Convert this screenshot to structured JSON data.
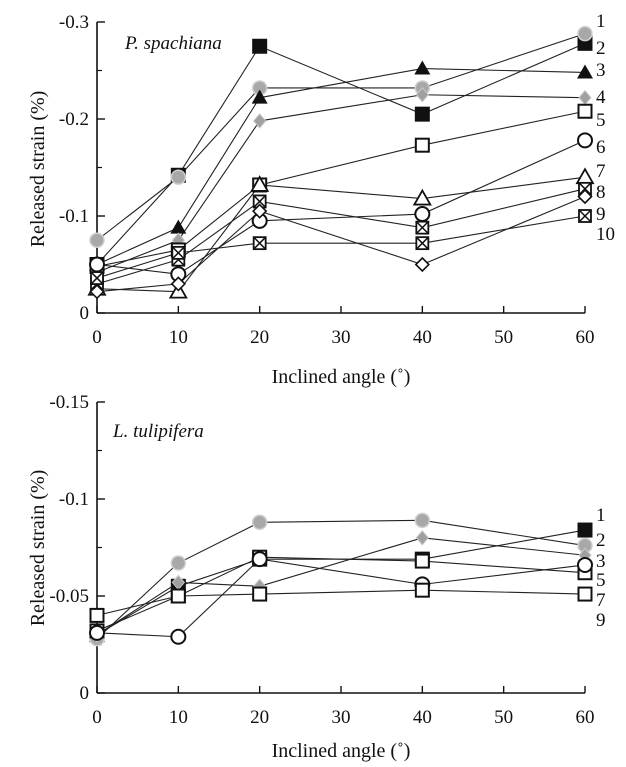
{
  "chart_data": [
    {
      "type": "line",
      "title": "P. spachiana",
      "xlabel": "Inclined angle (˚)",
      "ylabel": "Released strain (%)",
      "xlim": [
        0,
        60
      ],
      "ylim": [
        0,
        -0.3
      ],
      "x_ticks": [
        "0",
        "10",
        "20",
        "30",
        "40",
        "50",
        "60"
      ],
      "y_ticks": [
        "0",
        "-0.1",
        "-0.2",
        "-0.3"
      ],
      "x": [
        0,
        10,
        20,
        40,
        60
      ],
      "series": [
        {
          "label": "1",
          "marker": "square-filled",
          "values": [
            -0.05,
            -0.142,
            -0.275,
            -0.205,
            -0.278
          ]
        },
        {
          "label": "2",
          "marker": "circle-gray",
          "values": [
            -0.075,
            -0.14,
            -0.232,
            -0.232,
            -0.288
          ]
        },
        {
          "label": "3",
          "marker": "triangle-filled",
          "values": [
            -0.05,
            -0.088,
            -0.222,
            -0.252,
            -0.248
          ]
        },
        {
          "label": "4",
          "marker": "diamond-gray",
          "values": [
            -0.042,
            -0.075,
            -0.198,
            -0.225,
            -0.222
          ]
        },
        {
          "label": "5",
          "marker": "square-open",
          "values": [
            -0.048,
            -0.065,
            -0.132,
            -0.173,
            -0.208
          ]
        },
        {
          "label": "6",
          "marker": "circle-open",
          "values": [
            -0.05,
            -0.04,
            -0.095,
            -0.102,
            -0.178
          ]
        },
        {
          "label": "7",
          "marker": "triangle-open",
          "values": [
            -0.025,
            -0.022,
            -0.132,
            -0.118,
            -0.14
          ]
        },
        {
          "label": "8",
          "marker": "x-box",
          "values": [
            -0.03,
            -0.055,
            -0.115,
            -0.088,
            -0.128
          ]
        },
        {
          "label": "9",
          "marker": "diamond-open",
          "values": [
            -0.022,
            -0.03,
            -0.105,
            -0.05,
            -0.12
          ]
        },
        {
          "label": "10",
          "marker": "x-box",
          "values": [
            -0.036,
            -0.062,
            -0.072,
            -0.072,
            -0.1
          ]
        }
      ]
    },
    {
      "type": "line",
      "title": "L. tulipifera",
      "xlabel": "Inclined angle (˚)",
      "ylabel": "Released strain (%)",
      "xlim": [
        0,
        60
      ],
      "ylim": [
        0,
        -0.15
      ],
      "x_ticks": [
        "0",
        "10",
        "20",
        "30",
        "40",
        "50",
        "60"
      ],
      "y_ticks": [
        "0",
        "-0.05",
        "-0.1",
        "-0.15"
      ],
      "x": [
        0,
        10,
        20,
        40,
        60
      ],
      "series": [
        {
          "label": "1",
          "marker": "square-filled",
          "values": [
            -0.03,
            -0.055,
            -0.069,
            -0.069,
            -0.084
          ]
        },
        {
          "label": "2",
          "marker": "circle-gray",
          "values": [
            -0.028,
            -0.067,
            -0.088,
            -0.089,
            -0.076
          ]
        },
        {
          "label": "3",
          "marker": "diamond-gray",
          "values": [
            -0.03,
            -0.057,
            -0.055,
            -0.08,
            -0.071
          ]
        },
        {
          "label": "5",
          "marker": "square-open",
          "values": [
            -0.032,
            -0.05,
            -0.07,
            -0.068,
            -0.062
          ]
        },
        {
          "label": "7",
          "marker": "circle-open",
          "values": [
            -0.031,
            -0.029,
            -0.069,
            -0.056,
            -0.066
          ]
        },
        {
          "label": "9",
          "marker": "square-open",
          "values": [
            -0.04,
            -0.05,
            -0.051,
            -0.053,
            -0.051
          ]
        }
      ]
    }
  ]
}
